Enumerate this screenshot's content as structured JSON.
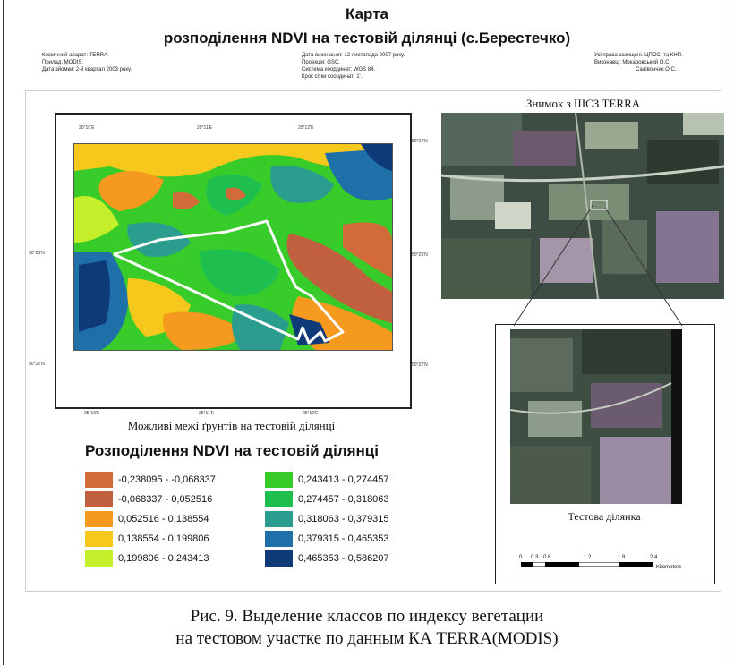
{
  "title_line1": "Карта",
  "title_line2": "розподілення NDVI на тестовій ділянці (с.Берестечко)",
  "meta_left": [
    "Космічний апарат: TERRA.",
    "Прилад: MODIS.",
    "Дата зйомки: 2-й квартал 2003 року."
  ],
  "meta_center": [
    "Дата виконання: 12 листопада 2007 року.",
    "Проекція: GSC.",
    "Система координат: WGS 84.",
    "Крок сітки координат: 1'."
  ],
  "meta_right": [
    "Усі права захищені. ЦПОСІ та КНП.",
    "Виконавці: Мокаровський О.С.",
    "Салівончик О.С."
  ],
  "coords": {
    "top": [
      "25°10'E",
      "25°11'E",
      "25°12'E"
    ],
    "bottom": [
      "25°10'E",
      "25°11'E",
      "25°12'E"
    ],
    "left": [
      "50°23'N",
      "50°22'N"
    ],
    "right": [
      "50°24'N",
      "50°23'N",
      "50°22'N"
    ]
  },
  "map_caption": "Можливі межі ґрунтів на тестовій ділянці",
  "legend_title": "Розподілення NDVI на тестовій ділянці",
  "legend_items": [
    {
      "label": "-0,238095 - -0,068337",
      "color": "#d26a3a"
    },
    {
      "label": "-0,068337 - 0,052516",
      "color": "#c1603e"
    },
    {
      "label": "0,052516 - 0,138554",
      "color": "#f59a1f"
    },
    {
      "label": "0,138554 - 0,199806",
      "color": "#f7c81c"
    },
    {
      "label": "0,199806 - 0,243413",
      "color": "#c5ee2b"
    },
    {
      "label": "0,243413 - 0,274457",
      "color": "#38cc2a"
    },
    {
      "label": "0,274457 - 0,318063",
      "color": "#1fbf4f"
    },
    {
      "label": "0,318063 - 0,379315",
      "color": "#2a9d8f"
    },
    {
      "label": "0,379315 - 0,465353",
      "color": "#1f6fa8"
    },
    {
      "label": "0,465353 - 0,586207",
      "color": "#0e3b78"
    }
  ],
  "satellite_caption": "Знимок з ШСЗ TERRA",
  "satellite_small_caption": "Тестова ділянка",
  "scale": {
    "labels": [
      "0",
      "0.3",
      "0.6",
      "1.2",
      "1.8",
      "2.4"
    ],
    "unit": "Kilometers"
  },
  "figure_caption_line1": "Рис. 9. Выделение классов по индексу вегетации",
  "figure_caption_line2": "на тестовом участке по данным КА TERRA(MODIS)"
}
